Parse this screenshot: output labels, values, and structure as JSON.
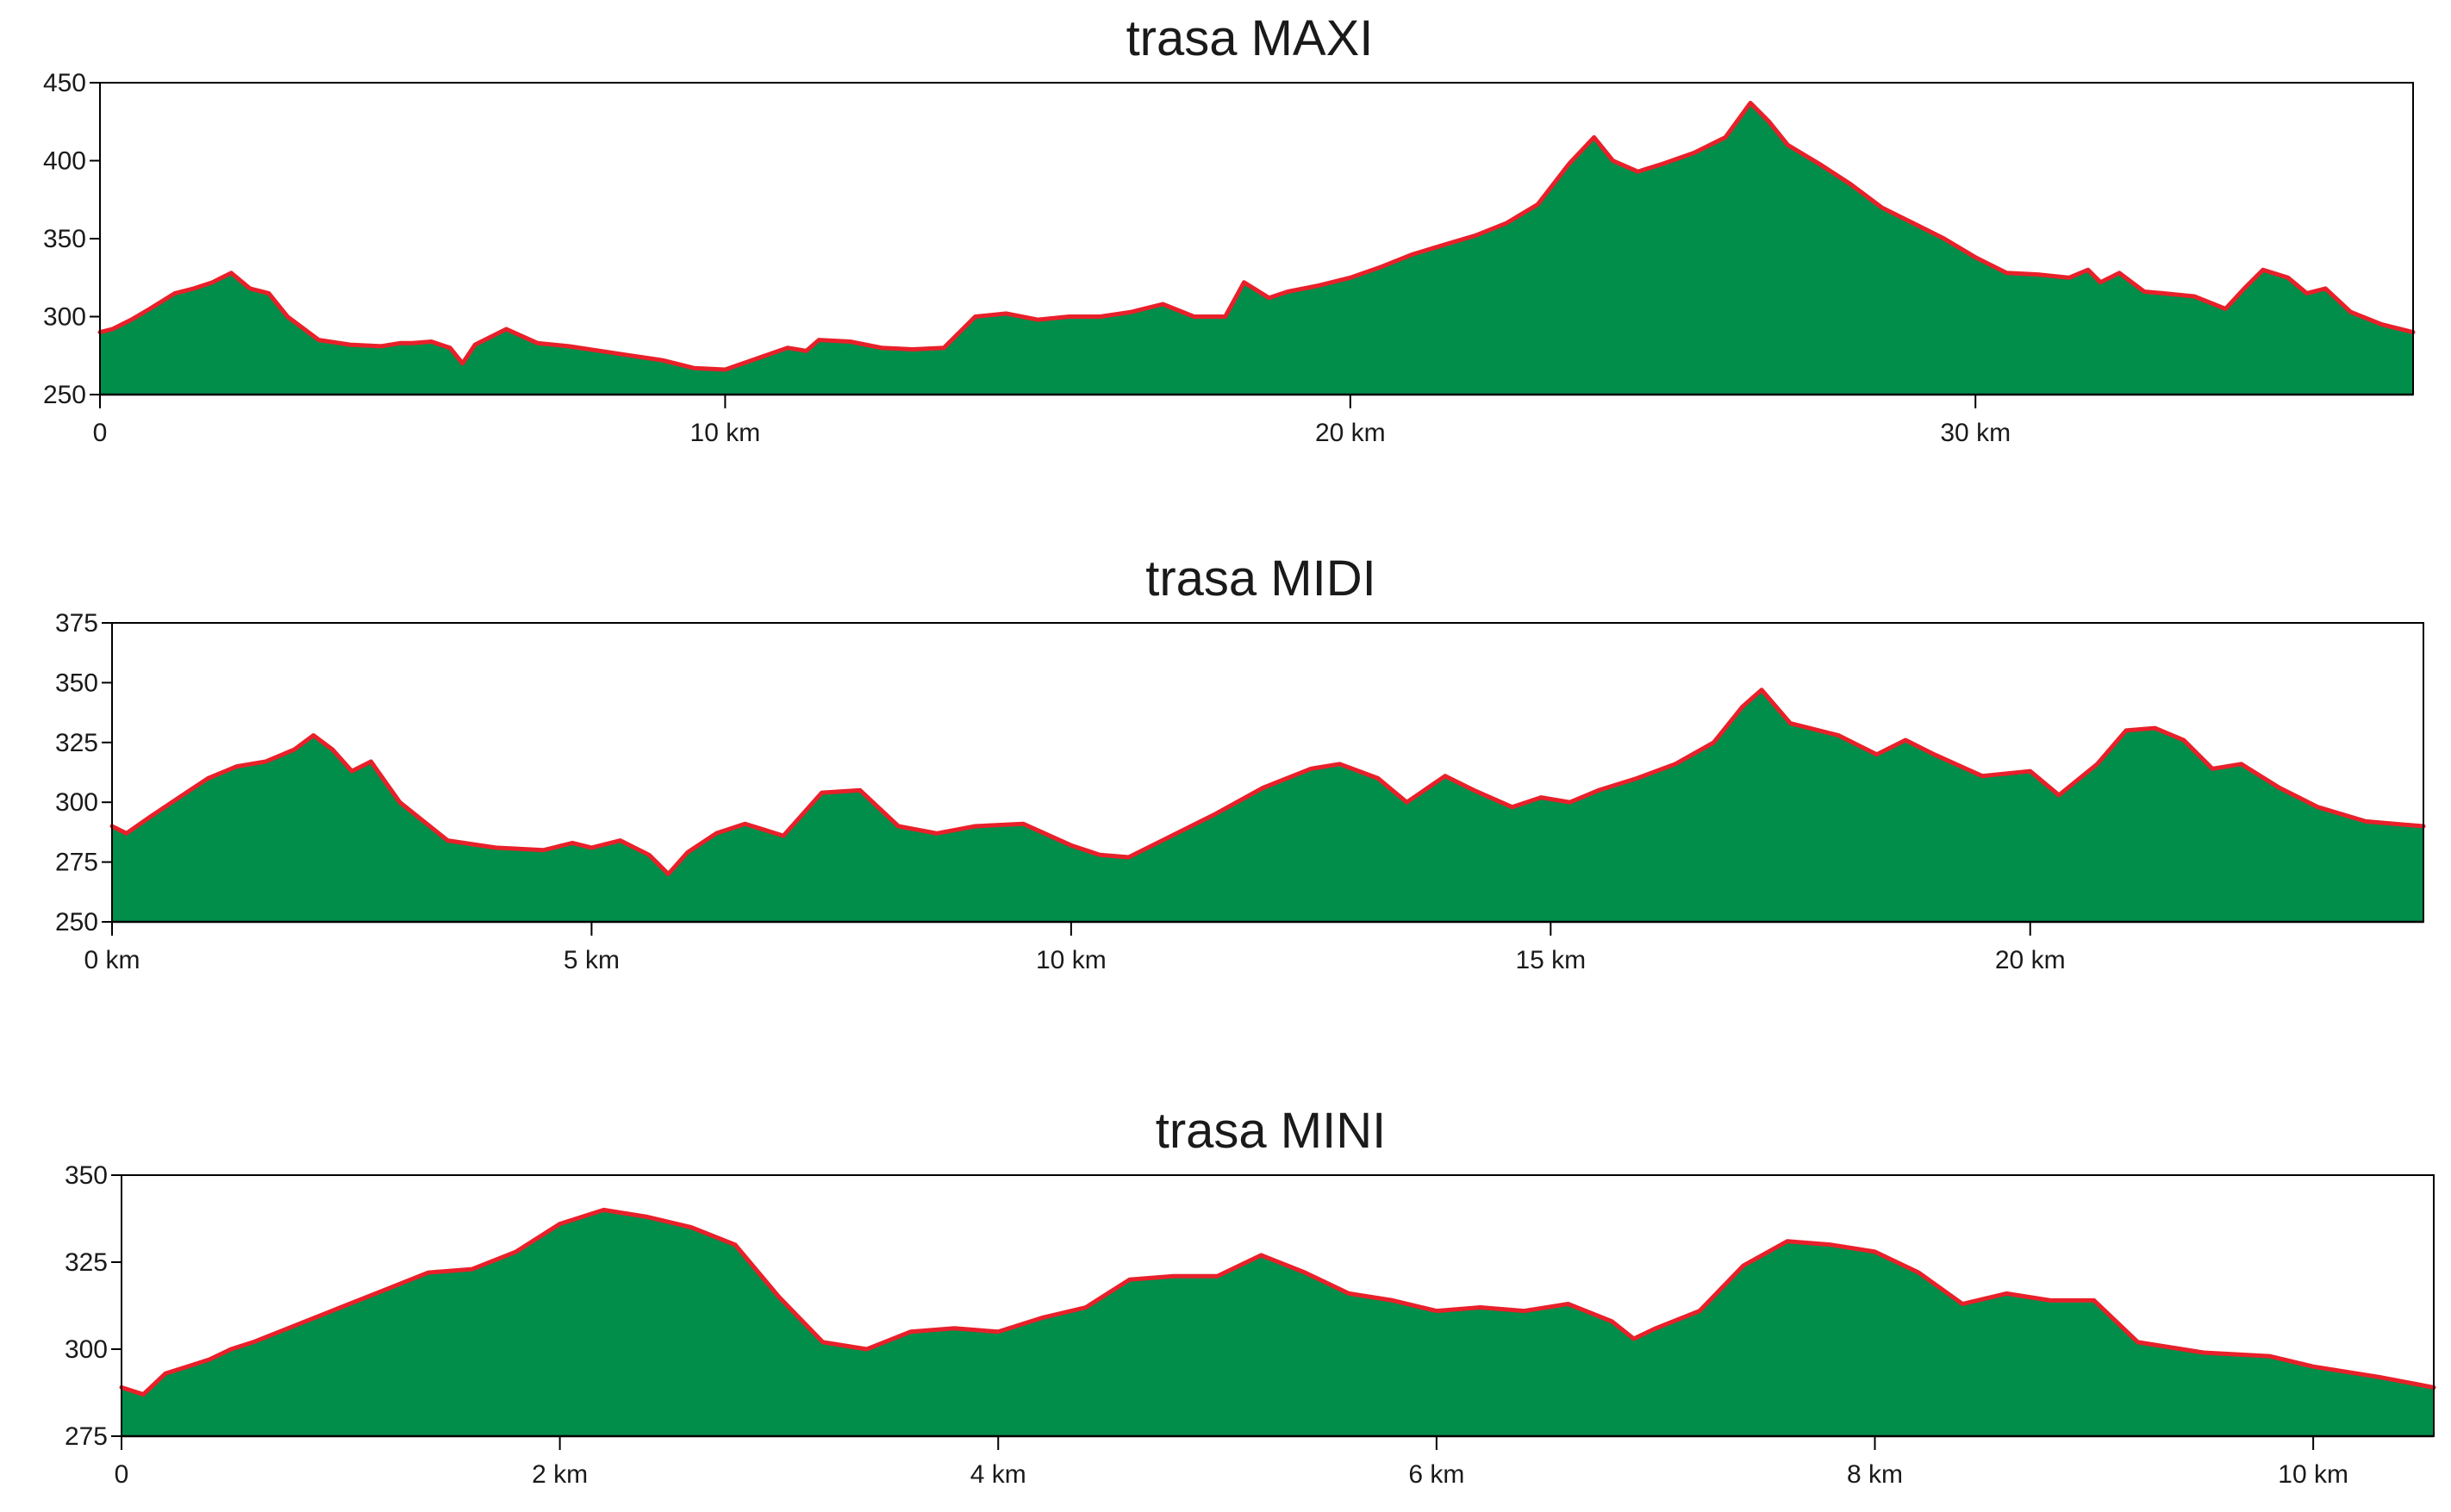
{
  "chart_data": [
    {
      "type": "area",
      "title": "trasa MAXI",
      "xlabel": "",
      "ylabel": "",
      "xlim": [
        0,
        37
      ],
      "ylim": [
        250,
        450
      ],
      "grid": false,
      "legend": "none",
      "fill_color": "#008e4a",
      "line_color": "#e8202a",
      "y_ticks": [
        {
          "value": 250,
          "label": "250"
        },
        {
          "value": 300,
          "label": "300"
        },
        {
          "value": 350,
          "label": "350"
        },
        {
          "value": 400,
          "label": "400"
        },
        {
          "value": 450,
          "label": "450"
        }
      ],
      "x_ticks": [
        {
          "value": 0,
          "label": "0"
        },
        {
          "value": 10,
          "label": "10 km"
        },
        {
          "value": 20,
          "label": "20 km"
        },
        {
          "value": 30,
          "label": "30 km"
        }
      ],
      "x": [
        0,
        0.2,
        0.5,
        0.8,
        1.0,
        1.2,
        1.5,
        1.8,
        2.1,
        2.4,
        2.7,
        3.0,
        3.5,
        4.0,
        4.5,
        4.8,
        5.0,
        5.3,
        5.6,
        5.8,
        6.0,
        6.5,
        7.0,
        7.5,
        8.0,
        8.5,
        9.0,
        9.5,
        10.0,
        10.5,
        11.0,
        11.3,
        11.5,
        12.0,
        12.5,
        13.0,
        13.5,
        14.0,
        14.5,
        15.0,
        15.5,
        16.0,
        16.5,
        17.0,
        17.5,
        18.0,
        18.3,
        18.7,
        19.0,
        19.5,
        20.0,
        20.5,
        21.0,
        21.5,
        22.0,
        22.5,
        23.0,
        23.5,
        23.9,
        24.2,
        24.6,
        25.0,
        25.5,
        26.0,
        26.4,
        26.7,
        27.0,
        27.5,
        28.0,
        28.5,
        29.0,
        29.5,
        30.0,
        30.5,
        31.0,
        31.5,
        31.8,
        32.0,
        32.3,
        32.7,
        33.0,
        33.5,
        34.0,
        34.3,
        34.6,
        35.0,
        35.3,
        35.6,
        36.0,
        36.5,
        37.0
      ],
      "values": [
        290,
        292,
        298,
        305,
        310,
        315,
        318,
        322,
        328,
        318,
        315,
        300,
        285,
        282,
        281,
        283,
        283,
        284,
        280,
        270,
        282,
        292,
        283,
        281,
        278,
        275,
        272,
        267,
        266,
        273,
        280,
        278,
        285,
        284,
        280,
        279,
        280,
        300,
        302,
        298,
        300,
        300,
        303,
        308,
        300,
        300,
        322,
        312,
        316,
        320,
        325,
        332,
        340,
        346,
        352,
        360,
        372,
        398,
        415,
        400,
        393,
        398,
        405,
        415,
        437,
        425,
        410,
        398,
        385,
        370,
        360,
        350,
        338,
        328,
        327,
        325,
        330,
        322,
        328,
        316,
        315,
        313,
        305,
        318,
        330,
        325,
        315,
        318,
        303,
        295,
        290
      ]
    },
    {
      "type": "area",
      "title": "trasa MIDI",
      "xlabel": "",
      "ylabel": "",
      "xlim": [
        0,
        24.1
      ],
      "ylim": [
        250,
        375
      ],
      "grid": false,
      "legend": "none",
      "fill_color": "#008e4a",
      "line_color": "#e8202a",
      "y_ticks": [
        {
          "value": 250,
          "label": "250"
        },
        {
          "value": 275,
          "label": "275"
        },
        {
          "value": 300,
          "label": "300"
        },
        {
          "value": 325,
          "label": "325"
        },
        {
          "value": 350,
          "label": "350"
        },
        {
          "value": 375,
          "label": "375"
        }
      ],
      "x_ticks": [
        {
          "value": 0,
          "label": "0 km"
        },
        {
          "value": 5,
          "label": "5 km"
        },
        {
          "value": 10,
          "label": "10 km"
        },
        {
          "value": 15,
          "label": "15 km"
        },
        {
          "value": 20,
          "label": "20 km"
        }
      ],
      "x": [
        0,
        0.15,
        0.4,
        0.7,
        1.0,
        1.3,
        1.6,
        1.9,
        2.1,
        2.3,
        2.5,
        2.7,
        3.0,
        3.5,
        4.0,
        4.5,
        4.8,
        5.0,
        5.3,
        5.6,
        5.8,
        6.0,
        6.3,
        6.6,
        7.0,
        7.4,
        7.8,
        8.2,
        8.6,
        9.0,
        9.5,
        10.0,
        10.3,
        10.6,
        11.0,
        11.5,
        12.0,
        12.5,
        12.8,
        13.2,
        13.5,
        13.9,
        14.2,
        14.6,
        14.9,
        15.2,
        15.5,
        15.9,
        16.3,
        16.7,
        17.0,
        17.2,
        17.5,
        18.0,
        18.4,
        18.7,
        19.0,
        19.5,
        20.0,
        20.3,
        20.7,
        21.0,
        21.3,
        21.6,
        21.9,
        22.2,
        22.6,
        23.0,
        23.5,
        24.1
      ],
      "values": [
        290,
        287,
        294,
        302,
        310,
        315,
        317,
        322,
        328,
        322,
        313,
        317,
        300,
        284,
        281,
        280,
        283,
        281,
        284,
        278,
        270,
        279,
        287,
        291,
        286,
        304,
        305,
        290,
        287,
        290,
        291,
        282,
        278,
        277,
        285,
        295,
        306,
        314,
        316,
        310,
        300,
        311,
        305,
        298,
        302,
        300,
        305,
        310,
        316,
        325,
        340,
        347,
        333,
        328,
        320,
        326,
        320,
        311,
        313,
        303,
        316,
        330,
        331,
        326,
        314,
        316,
        306,
        298,
        292,
        290
      ]
    },
    {
      "type": "area",
      "title": "trasa MINI",
      "xlabel": "",
      "ylabel": "",
      "xlim": [
        0,
        10.55
      ],
      "ylim": [
        275,
        350
      ],
      "grid": false,
      "legend": "none",
      "fill_color": "#008e4a",
      "line_color": "#e8202a",
      "y_ticks": [
        {
          "value": 275,
          "label": "275"
        },
        {
          "value": 300,
          "label": "300"
        },
        {
          "value": 325,
          "label": "325"
        },
        {
          "value": 350,
          "label": "350"
        }
      ],
      "x_ticks": [
        {
          "value": 0,
          "label": "0"
        },
        {
          "value": 2,
          "label": "2 km"
        },
        {
          "value": 4,
          "label": "4 km"
        },
        {
          "value": 6,
          "label": "6 km"
        },
        {
          "value": 8,
          "label": "8 km"
        },
        {
          "value": 10,
          "label": "10 km"
        }
      ],
      "x": [
        0,
        0.1,
        0.2,
        0.3,
        0.4,
        0.5,
        0.6,
        0.8,
        1.0,
        1.2,
        1.4,
        1.6,
        1.8,
        2.0,
        2.2,
        2.4,
        2.6,
        2.8,
        3.0,
        3.2,
        3.4,
        3.6,
        3.8,
        4.0,
        4.2,
        4.4,
        4.6,
        4.8,
        5.0,
        5.2,
        5.4,
        5.6,
        5.8,
        6.0,
        6.2,
        6.4,
        6.6,
        6.8,
        6.9,
        7.0,
        7.2,
        7.4,
        7.6,
        7.8,
        8.0,
        8.2,
        8.4,
        8.6,
        8.8,
        9.0,
        9.2,
        9.5,
        9.8,
        10.0,
        10.3,
        10.55
      ],
      "values": [
        289,
        287,
        293,
        295,
        297,
        300,
        302,
        307,
        312,
        317,
        322,
        323,
        328,
        336,
        340,
        338,
        335,
        330,
        315,
        302,
        300,
        305,
        306,
        305,
        309,
        312,
        320,
        321,
        321,
        327,
        322,
        316,
        314,
        311,
        312,
        311,
        313,
        308,
        303,
        306,
        311,
        324,
        331,
        330,
        328,
        322,
        313,
        316,
        314,
        314,
        302,
        299,
        298,
        295,
        292,
        289
      ]
    }
  ]
}
